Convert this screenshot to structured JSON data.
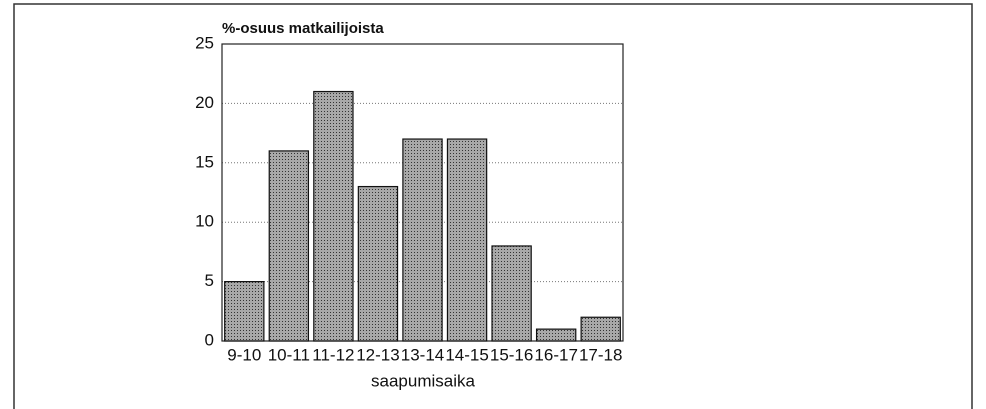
{
  "chart_data": {
    "type": "bar",
    "ylabel": "%-osuus matkailijoista",
    "xlabel": "saapumisaika",
    "categories": [
      "9-10",
      "10-11",
      "11-12",
      "12-13",
      "13-14",
      "14-15",
      "15-16",
      "16-17",
      "17-18"
    ],
    "values": [
      5,
      16,
      21,
      13,
      17,
      17,
      8,
      1,
      2
    ],
    "color": "#a8a8a8",
    "ylim": [
      0,
      25
    ],
    "yticks": [
      0,
      5,
      10,
      15,
      20,
      25
    ],
    "grid": true
  }
}
